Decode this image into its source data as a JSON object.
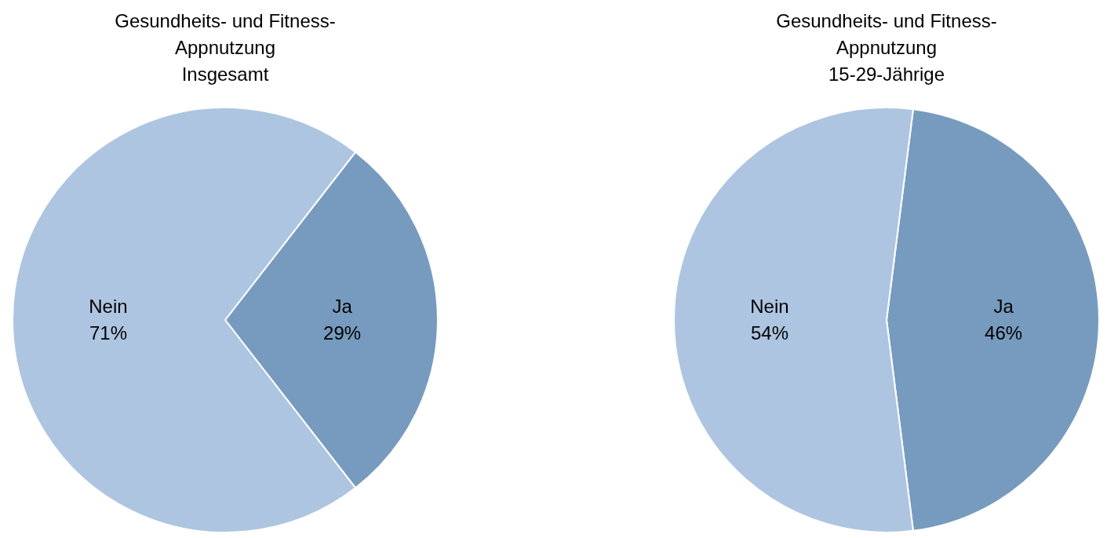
{
  "chart_data": [
    {
      "type": "pie",
      "title": "Gesundheits- und Fitness-Appnutzung",
      "subtitle": "Insgesamt",
      "categories": [
        "Ja",
        "Nein"
      ],
      "values": [
        29,
        71
      ],
      "value_labels": [
        "29%",
        "71%"
      ],
      "colors": [
        "#779bbf",
        "#aec5e1"
      ],
      "legend": false
    },
    {
      "type": "pie",
      "title": "Gesundheits- und Fitness-Appnutzung",
      "subtitle": "15-29-Jährige",
      "categories": [
        "Ja",
        "Nein"
      ],
      "values": [
        46,
        54
      ],
      "value_labels": [
        "46%",
        "54%"
      ],
      "colors": [
        "#779bbf",
        "#aec5e1"
      ],
      "legend": false
    }
  ]
}
